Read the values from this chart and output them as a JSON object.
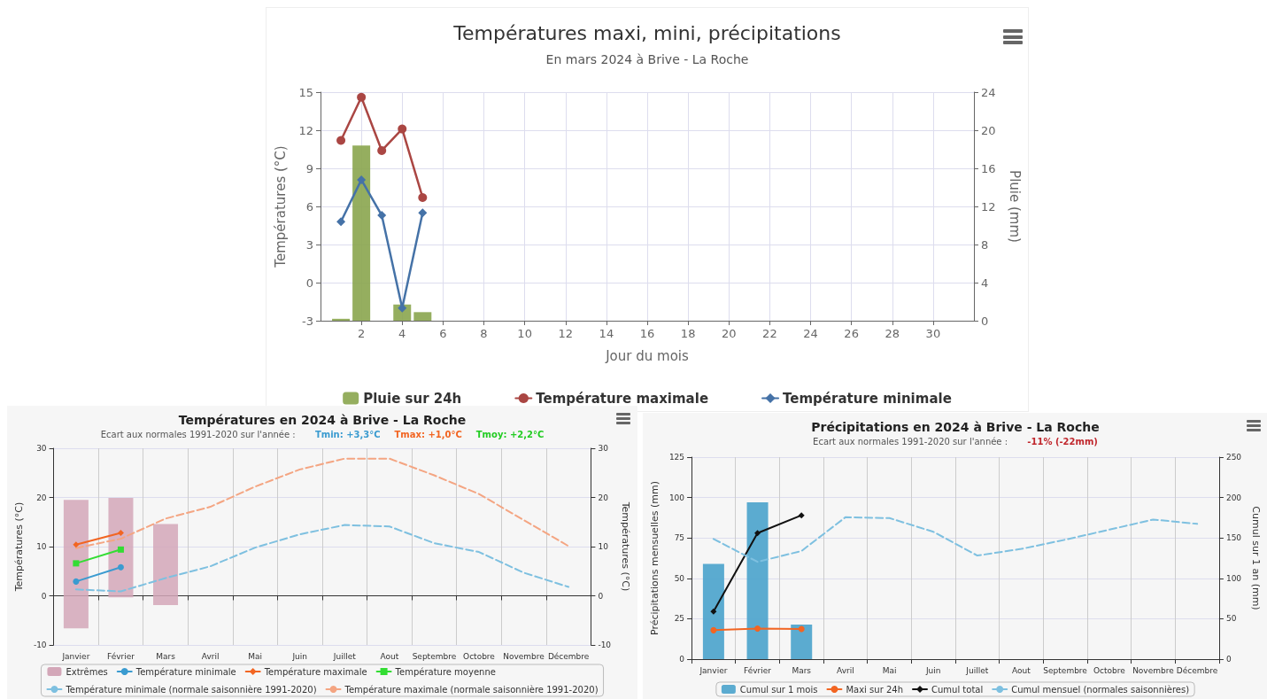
{
  "chart_data": [
    {
      "type": "bar",
      "title": "Températures maxi, mini, précipitations",
      "subtitle": "En mars 2024 à Brive - La Roche",
      "xlabel": "Jour du mois",
      "ylabel": "Températures (°C)",
      "y2label": "Pluie (mm)",
      "x": [
        1,
        2,
        3,
        4,
        5
      ],
      "xlim": [
        0,
        32
      ],
      "xticks": [
        2,
        4,
        6,
        8,
        10,
        12,
        14,
        16,
        18,
        20,
        22,
        24,
        26,
        28,
        30
      ],
      "ylim": [
        -3,
        15
      ],
      "yticks": [
        -3,
        0,
        3,
        6,
        9,
        12,
        15
      ],
      "y2lim": [
        0,
        24
      ],
      "y2ticks": [
        0,
        4,
        8,
        12,
        16,
        20,
        24
      ],
      "grid": true,
      "legend": "bottom",
      "series": [
        {
          "name": "Pluie sur 24h",
          "axis": "y2",
          "color": "#89a54e",
          "values": [
            0.2,
            18.4,
            null,
            1.7,
            0.9
          ]
        },
        {
          "name": "Température maximale",
          "type": "line",
          "marker": "circle",
          "color": "#aa4643",
          "values": [
            11.2,
            14.6,
            10.4,
            12.1,
            6.7
          ]
        },
        {
          "name": "Température minimale",
          "type": "line",
          "marker": "diamond",
          "color": "#4572a7",
          "values": [
            4.8,
            8.1,
            5.3,
            -2.0,
            5.5
          ]
        }
      ]
    },
    {
      "type": "line",
      "title": "Températures en 2024 à Brive - La Roche",
      "subtitle": "Ecart aux normales 1991-2020 sur l'année :",
      "annotations": [
        "Tmin: +3,3°C",
        "Tmax: +1,0°C",
        "Tmoy: +2,2°C"
      ],
      "ylabel": "Températures (°C)",
      "y2label": "Températures (°C)",
      "categories": [
        "Janvier",
        "Février",
        "Mars",
        "Avril",
        "Mai",
        "Juin",
        "Juillet",
        "Aout",
        "Septembre",
        "Octobre",
        "Novembre",
        "Décembre"
      ],
      "ylim": [
        -10,
        30
      ],
      "yticks": [
        -10,
        0,
        10,
        20,
        30
      ],
      "y2lim": [
        -10,
        30
      ],
      "y2ticks": [
        -10,
        0,
        10,
        20,
        30
      ],
      "grid": true,
      "legend": "bottom",
      "series": [
        {
          "name": "Extrêmes",
          "type": "bar",
          "color": "#d3a7b8",
          "base": [
            -6.6,
            -0.3,
            -1.9,
            null,
            null,
            null,
            null,
            null,
            null,
            null,
            null,
            null
          ],
          "values": [
            26.1,
            20.2,
            16.5,
            null,
            null,
            null,
            null,
            null,
            null,
            null,
            null,
            null
          ]
        },
        {
          "name": "Température minimale",
          "marker": "circle",
          "color": "#3a9bd0",
          "values": [
            2.9,
            5.8,
            null,
            null,
            null,
            null,
            null,
            null,
            null,
            null,
            null,
            null
          ]
        },
        {
          "name": "Température maximale",
          "marker": "diamond",
          "color": "#f26522",
          "values": [
            10.4,
            12.8,
            null,
            null,
            null,
            null,
            null,
            null,
            null,
            null,
            null,
            null
          ]
        },
        {
          "name": "Température moyenne",
          "marker": "square",
          "color": "#33dd33",
          "values": [
            6.6,
            9.4,
            null,
            null,
            null,
            null,
            null,
            null,
            null,
            null,
            null,
            null
          ]
        },
        {
          "name": "Température minimale (normale saisonnière 1991-2020)",
          "marker": "none",
          "line_style": "dashed",
          "color": "#7ec0e0",
          "values": [
            1.3,
            0.9,
            3.6,
            6.0,
            9.8,
            12.5,
            14.4,
            14.1,
            10.7,
            8.9,
            4.7,
            1.8
          ]
        },
        {
          "name": "Température maximale (normale saisonnière 1991-2020)",
          "marker": "none",
          "line_style": "dashed",
          "color": "#f4a582",
          "values": [
            9.7,
            11.6,
            15.7,
            18.1,
            22.2,
            25.7,
            27.9,
            27.9,
            24.5,
            20.7,
            15.4,
            10.1
          ]
        }
      ]
    },
    {
      "type": "bar",
      "title": "Précipitations en 2024 à Brive - La Roche",
      "subtitle": "Ecart aux normales 1991-2020 sur l'année :",
      "annotations": [
        "-11% (-22mm)"
      ],
      "ylabel": "Précipitations mensuelles (mm)",
      "y2label": "Cumul sur 1 an (mm)",
      "categories": [
        "Janvier",
        "Février",
        "Mars",
        "Avril",
        "Mai",
        "Juin",
        "Juillet",
        "Aout",
        "Septembre",
        "Octobre",
        "Novembre",
        "Décembre"
      ],
      "ylim": [
        0,
        125
      ],
      "yticks": [
        0,
        25,
        50,
        75,
        100,
        125
      ],
      "y2lim": [
        0,
        250
      ],
      "y2ticks": [
        0,
        50,
        100,
        150,
        200,
        250
      ],
      "grid": true,
      "legend": "bottom",
      "series": [
        {
          "name": "Cumul sur 1 mois",
          "color": "#4aa3cc",
          "values": [
            59.0,
            97.0,
            21.4,
            null,
            null,
            null,
            null,
            null,
            null,
            null,
            null,
            null
          ]
        },
        {
          "name": "Maxi sur 24h",
          "type": "line",
          "marker": "circle",
          "color": "#f26522",
          "values": [
            17.9,
            18.9,
            18.6,
            null,
            null,
            null,
            null,
            null,
            null,
            null,
            null,
            null
          ]
        },
        {
          "name": "Cumul total",
          "type": "line",
          "marker": "diamond",
          "axis": "y2",
          "color": "#111111",
          "values": [
            59,
            156,
            178,
            null,
            null,
            null,
            null,
            null,
            null,
            null,
            null,
            null
          ]
        },
        {
          "name": "Cumul mensuel (normales saisonnières)",
          "type": "line",
          "marker": "none",
          "line_style": "dashed",
          "color": "#7ec0e0",
          "values": [
            74.4,
            60.2,
            66.9,
            87.8,
            87.3,
            78.8,
            64.1,
            68.2,
            73.9,
            80.1,
            86.4,
            83.7
          ]
        }
      ]
    }
  ]
}
